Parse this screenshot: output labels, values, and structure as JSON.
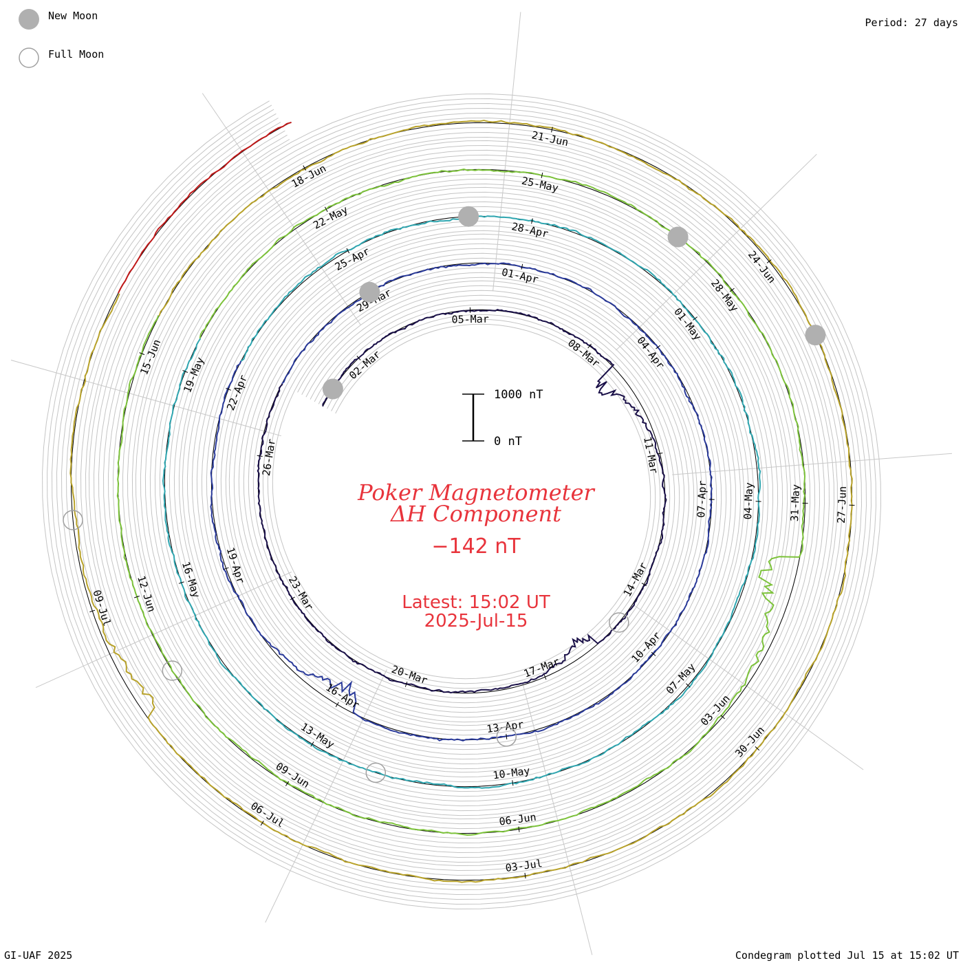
{
  "chart_data": {
    "type": "line",
    "subtype": "spiral condegram",
    "title": "Poker Magnetometer",
    "subtitle": "ΔH Component",
    "current_value": "−142 nT",
    "latest_label": "Latest: 15:02 UT",
    "latest_date": "2025-Jul-15",
    "period_label": "Period: 27 days",
    "footer_left": "GI-UAF 2025",
    "footer_right": "Condegram plotted Jul 15 at 15:02 UT",
    "scale_bar": {
      "top_label": "1000 nT",
      "bottom_label": "0 nT",
      "range_nT": [
        0,
        1000
      ]
    },
    "legend": [
      {
        "name": "New Moon",
        "symbol": "filled-circle",
        "color": "#b0b0b0"
      },
      {
        "name": "Full Moon",
        "symbol": "open-circle",
        "color": "#a0a0a0"
      }
    ],
    "date_range": [
      "2025-02-28",
      "2025-07-15"
    ],
    "period_days": 27,
    "rotations": [
      {
        "start": "2025-02-28",
        "color": "#1a1048",
        "ticks": [
          "02-Mar",
          "05-Mar",
          "08-Mar",
          "11-Mar",
          "14-Mar",
          "17-Mar",
          "20-Mar",
          "23-Mar",
          "26-Mar"
        ]
      },
      {
        "start": "2025-03-27",
        "color": "#2a3a9a",
        "ticks": [
          "29-Mar",
          "01-Apr",
          "04-Apr",
          "07-Apr",
          "10-Apr",
          "13-Apr",
          "16-Apr",
          "19-Apr",
          "22-Apr"
        ]
      },
      {
        "start": "2025-04-23",
        "color": "#2fa6b0",
        "ticks": [
          "25-Apr",
          "28-Apr",
          "01-May",
          "04-May",
          "07-May",
          "10-May",
          "13-May",
          "16-May",
          "19-May"
        ]
      },
      {
        "start": "2025-05-20",
        "color": "#7cc23a",
        "ticks": [
          "22-May",
          "25-May",
          "28-May",
          "31-May",
          "03-Jun",
          "06-Jun",
          "09-Jun",
          "12-Jun",
          "15-Jun"
        ]
      },
      {
        "start": "2025-06-16",
        "color": "#b8a22a",
        "ticks": [
          "18-Jun",
          "21-Jun",
          "24-Jun",
          "27-Jun",
          "30-Jun",
          "03-Jul",
          "06-Jul",
          "09-Jul"
        ]
      },
      {
        "start": "2025-07-13",
        "color": "#c01818",
        "ticks": []
      }
    ],
    "new_moons": [
      "2025-02-28",
      "2025-03-29",
      "2025-04-27",
      "2025-05-27",
      "2025-06-25"
    ],
    "full_moons": [
      "2025-03-14",
      "2025-04-13",
      "2025-05-12",
      "2025-06-11",
      "2025-07-10"
    ],
    "disturbances_nT": [
      {
        "date": "2025-03-08",
        "deltaH_min": -600
      },
      {
        "date": "2025-03-15",
        "deltaH_min": -350
      },
      {
        "date": "2025-04-16",
        "deltaH_min": -500
      },
      {
        "date": "2025-06-01",
        "deltaH_min": -750
      },
      {
        "date": "2025-07-08",
        "deltaH_min": -300
      }
    ]
  }
}
